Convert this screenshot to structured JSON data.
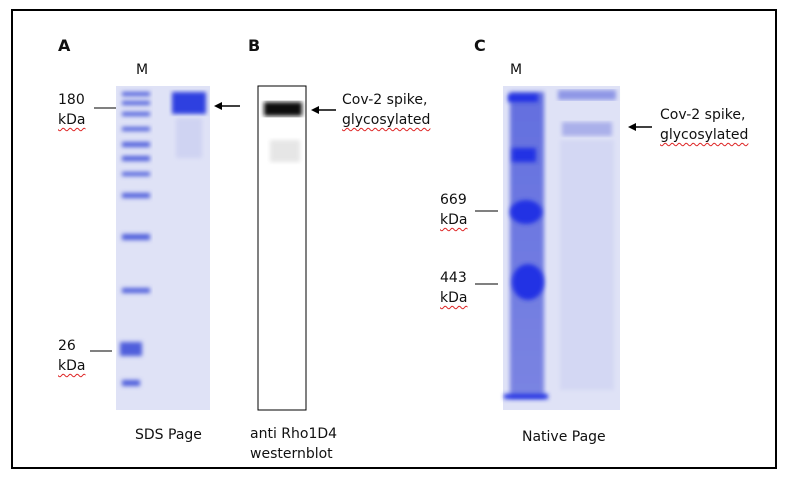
{
  "panels": [
    {
      "letter": "A",
      "lane_label": "M",
      "markers": [
        {
          "size": "180",
          "unit": "kDa"
        },
        {
          "size": "26",
          "unit": "kDa"
        }
      ],
      "caption": "SDS Page"
    },
    {
      "letter": "B",
      "annotation": [
        "Cov-2 spike,",
        "glycosylated"
      ],
      "caption": [
        "anti Rho1D4",
        "westernblot"
      ]
    },
    {
      "letter": "C",
      "lane_label": "M",
      "annotation": [
        "Cov-2 spike,",
        "glycosylated"
      ],
      "markers": [
        {
          "size": "669",
          "unit": "kDa"
        },
        {
          "size": "443",
          "unit": "kDa"
        }
      ],
      "caption": "Native Page"
    }
  ]
}
